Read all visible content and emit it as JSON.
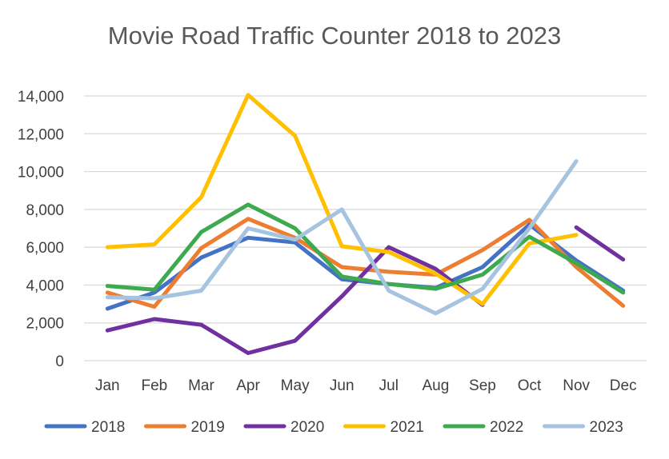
{
  "chart_data": {
    "type": "line",
    "title": "Movie Road Traffic Counter 2018 to 2023",
    "xlabel": "",
    "ylabel": "",
    "categories": [
      "Jan",
      "Feb",
      "Mar",
      "Apr",
      "May",
      "Jun",
      "Jul",
      "Aug",
      "Sep",
      "Oct",
      "Nov",
      "Dec"
    ],
    "ylim": [
      0,
      14000
    ],
    "yticks": [
      0,
      2000,
      4000,
      6000,
      8000,
      10000,
      12000,
      14000
    ],
    "ytick_labels": [
      "0",
      "2,000",
      "4,000",
      "6,000",
      "8,000",
      "10,000",
      "12,000",
      "14,000"
    ],
    "grid": true,
    "legend_position": "bottom",
    "series": [
      {
        "name": "2018",
        "color": "#4472C4",
        "values": [
          2750,
          3600,
          5450,
          6500,
          6250,
          4300,
          4050,
          3850,
          4950,
          7200,
          5300,
          3700
        ]
      },
      {
        "name": "2019",
        "color": "#ED7D31",
        "values": [
          3600,
          2850,
          5950,
          7500,
          6500,
          4950,
          4700,
          4550,
          5850,
          7450,
          4950,
          2900
        ]
      },
      {
        "name": "2020",
        "color": "#7030A0",
        "values": [
          1600,
          2200,
          1900,
          400,
          1050,
          3400,
          6000,
          4850,
          2950,
          null,
          7050,
          5350
        ]
      },
      {
        "name": "2021",
        "color": "#FFC000",
        "values": [
          6000,
          6150,
          8650,
          14050,
          11900,
          6050,
          5750,
          4600,
          3000,
          6200,
          6650,
          null
        ]
      },
      {
        "name": "2022",
        "color": "#3DAA4F",
        "values": [
          3950,
          3750,
          6800,
          8250,
          7000,
          4450,
          4050,
          3800,
          4550,
          6550,
          5150,
          3600
        ]
      },
      {
        "name": "2023",
        "color": "#A6C3E0",
        "values": [
          3350,
          3300,
          3700,
          7000,
          6400,
          8000,
          3700,
          2500,
          3800,
          7000,
          10550,
          null
        ]
      }
    ]
  }
}
